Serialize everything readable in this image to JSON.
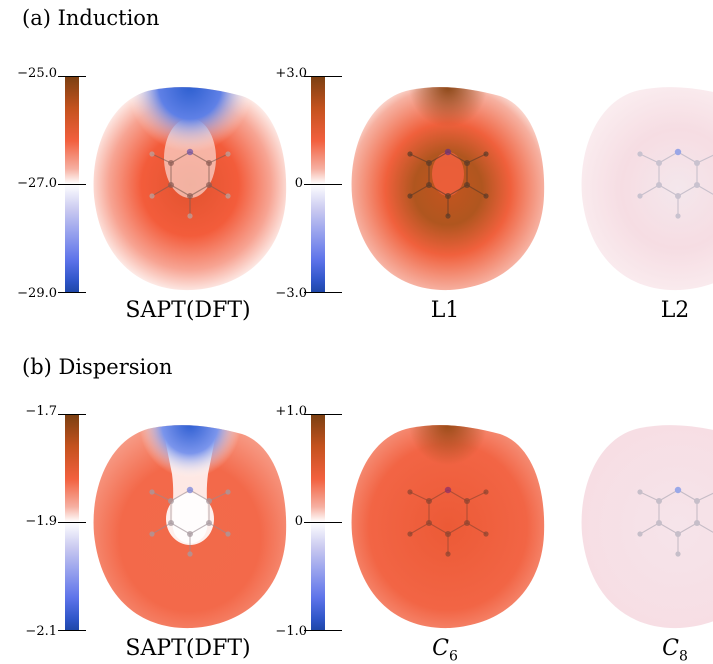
{
  "panels": {
    "induction": {
      "title": "(a) Induction",
      "colorbar_left": {
        "top": "−25.0",
        "mid": "−27.0",
        "bottom": "−29.0"
      },
      "colorbar_right": {
        "top": "+3.0",
        "mid": "0",
        "bottom": "−3.0"
      },
      "captions": [
        "SAPT(DFT)",
        "L1",
        "L2"
      ]
    },
    "dispersion": {
      "title": "(b) Dispersion",
      "colorbar_left": {
        "top": "−1.7",
        "mid": "−1.9",
        "bottom": "−2.1"
      },
      "colorbar_right": {
        "top": "+1.0",
        "mid": "0",
        "bottom": "−1.0"
      },
      "captions": [
        "SAPT(DFT)",
        "C",
        "C"
      ],
      "caption_subscripts": [
        "",
        "6",
        "8"
      ]
    }
  },
  "colors": {
    "positive_max": "#7a3f12",
    "positive": "#f2603e",
    "neutral": "#ffffff",
    "negative": "#2e55c8"
  }
}
